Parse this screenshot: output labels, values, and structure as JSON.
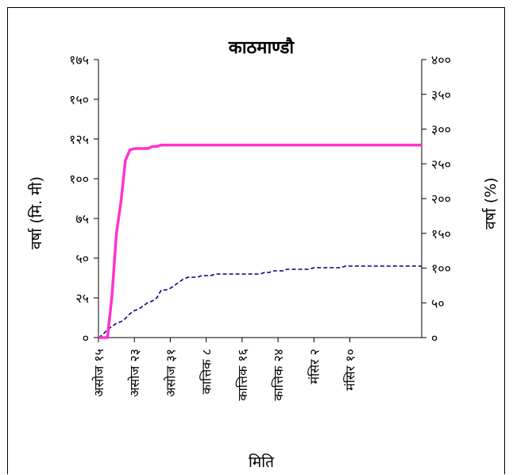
{
  "chart_data": {
    "type": "line",
    "title": "काठमाण्डौ",
    "xlabel": "मिति",
    "ylabel_left": "वर्षा (मि. मी)",
    "ylabel_right": "वर्षा (%)",
    "ylim_left": [
      0,
      175
    ],
    "ylim_right": [
      0,
      400
    ],
    "yticks_left": [
      {
        "v": 0,
        "label": "०"
      },
      {
        "v": 25,
        "label": "२५"
      },
      {
        "v": 50,
        "label": "५०"
      },
      {
        "v": 75,
        "label": "७५"
      },
      {
        "v": 100,
        "label": "१००"
      },
      {
        "v": 125,
        "label": "१२५"
      },
      {
        "v": 150,
        "label": "१५०"
      },
      {
        "v": 175,
        "label": "१७५"
      }
    ],
    "yticks_right": [
      {
        "v": 0,
        "label": "०"
      },
      {
        "v": 50,
        "label": "५०"
      },
      {
        "v": 100,
        "label": "१००"
      },
      {
        "v": 150,
        "label": "१५०"
      },
      {
        "v": 200,
        "label": "२००"
      },
      {
        "v": 250,
        "label": "२५०"
      },
      {
        "v": 300,
        "label": "३००"
      },
      {
        "v": 350,
        "label": "३५०"
      },
      {
        "v": 400,
        "label": "४००"
      }
    ],
    "x_count": 73,
    "xticks": [
      {
        "i": 0,
        "label": "असोज १५"
      },
      {
        "i": 8,
        "label": "असोज २३"
      },
      {
        "i": 16,
        "label": "असोज ३१"
      },
      {
        "i": 24,
        "label": "कात्तिक ८"
      },
      {
        "i": 32,
        "label": "कात्तिक १६"
      },
      {
        "i": 40,
        "label": "कात्तिक २४"
      },
      {
        "i": 48,
        "label": "मंसिर २"
      },
      {
        "i": 56,
        "label": "मंसिर १०"
      }
    ],
    "series": [
      {
        "axis": "left",
        "color": "#000080",
        "style": "dashed",
        "points": [
          [
            0,
            0
          ],
          [
            1,
            2
          ],
          [
            2,
            5
          ],
          [
            3,
            7
          ],
          [
            4,
            9
          ],
          [
            5,
            10
          ],
          [
            6,
            12
          ],
          [
            7,
            15
          ],
          [
            8,
            17
          ],
          [
            9,
            18
          ],
          [
            10,
            20
          ],
          [
            11,
            22
          ],
          [
            12,
            23
          ],
          [
            13,
            25
          ],
          [
            14,
            30
          ],
          [
            15,
            30
          ],
          [
            16,
            31
          ],
          [
            17,
            33
          ],
          [
            18,
            35
          ],
          [
            19,
            37
          ],
          [
            20,
            38
          ],
          [
            21,
            38
          ],
          [
            22,
            38
          ],
          [
            23,
            39
          ],
          [
            24,
            39
          ],
          [
            25,
            39
          ],
          [
            26,
            40
          ],
          [
            27,
            40
          ],
          [
            28,
            40
          ],
          [
            29,
            40
          ],
          [
            30,
            40
          ],
          [
            31,
            40
          ],
          [
            32,
            40
          ],
          [
            33,
            40
          ],
          [
            34,
            40
          ],
          [
            35,
            40
          ],
          [
            36,
            40
          ],
          [
            37,
            41
          ],
          [
            38,
            41
          ],
          [
            39,
            42
          ],
          [
            40,
            42
          ],
          [
            41,
            42
          ],
          [
            42,
            43
          ],
          [
            43,
            43
          ],
          [
            44,
            43
          ],
          [
            45,
            43
          ],
          [
            46,
            43
          ],
          [
            47,
            43
          ],
          [
            48,
            44
          ],
          [
            49,
            44
          ],
          [
            50,
            44
          ],
          [
            51,
            44
          ],
          [
            52,
            44
          ],
          [
            53,
            44
          ],
          [
            54,
            44
          ],
          [
            55,
            45
          ],
          [
            56,
            45
          ],
          [
            57,
            45
          ],
          [
            58,
            45
          ],
          [
            59,
            45
          ],
          [
            60,
            45
          ],
          [
            61,
            45
          ],
          [
            62,
            45
          ],
          [
            63,
            45
          ],
          [
            64,
            45
          ],
          [
            65,
            45
          ],
          [
            66,
            45
          ],
          [
            67,
            45
          ],
          [
            68,
            45
          ],
          [
            69,
            45
          ],
          [
            70,
            45
          ],
          [
            71,
            45
          ],
          [
            72,
            45
          ]
        ]
      },
      {
        "axis": "right",
        "color": "#ff33cc",
        "style": "solid",
        "points": [
          [
            0,
            0
          ],
          [
            1,
            0
          ],
          [
            2,
            0
          ],
          [
            3,
            60
          ],
          [
            4,
            150
          ],
          [
            5,
            195
          ],
          [
            6,
            255
          ],
          [
            7,
            270
          ],
          [
            8,
            272
          ],
          [
            9,
            272
          ],
          [
            10,
            272
          ],
          [
            11,
            272
          ],
          [
            12,
            275
          ],
          [
            13,
            275
          ],
          [
            14,
            277
          ],
          [
            15,
            277
          ],
          [
            16,
            277
          ],
          [
            17,
            277
          ],
          [
            18,
            277
          ],
          [
            19,
            277
          ],
          [
            20,
            277
          ],
          [
            21,
            277
          ],
          [
            22,
            277
          ],
          [
            23,
            277
          ],
          [
            24,
            277
          ],
          [
            25,
            277
          ],
          [
            26,
            277
          ],
          [
            27,
            277
          ],
          [
            28,
            277
          ],
          [
            29,
            277
          ],
          [
            30,
            277
          ],
          [
            31,
            277
          ],
          [
            32,
            277
          ],
          [
            33,
            277
          ],
          [
            34,
            277
          ],
          [
            35,
            277
          ],
          [
            36,
            277
          ],
          [
            37,
            277
          ],
          [
            38,
            277
          ],
          [
            39,
            277
          ],
          [
            40,
            277
          ],
          [
            41,
            277
          ],
          [
            42,
            277
          ],
          [
            43,
            277
          ],
          [
            44,
            277
          ],
          [
            45,
            277
          ],
          [
            46,
            277
          ],
          [
            47,
            277
          ],
          [
            48,
            277
          ],
          [
            49,
            277
          ],
          [
            50,
            277
          ],
          [
            51,
            277
          ],
          [
            52,
            277
          ],
          [
            53,
            277
          ],
          [
            54,
            277
          ],
          [
            55,
            277
          ],
          [
            56,
            277
          ],
          [
            57,
            277
          ],
          [
            58,
            277
          ],
          [
            59,
            277
          ],
          [
            60,
            277
          ],
          [
            61,
            277
          ],
          [
            62,
            277
          ],
          [
            63,
            277
          ],
          [
            64,
            277
          ],
          [
            65,
            277
          ],
          [
            66,
            277
          ],
          [
            67,
            277
          ],
          [
            68,
            277
          ],
          [
            69,
            277
          ],
          [
            70,
            277
          ],
          [
            71,
            277
          ],
          [
            72,
            277
          ]
        ]
      }
    ],
    "grid": false,
    "legend": "none"
  }
}
